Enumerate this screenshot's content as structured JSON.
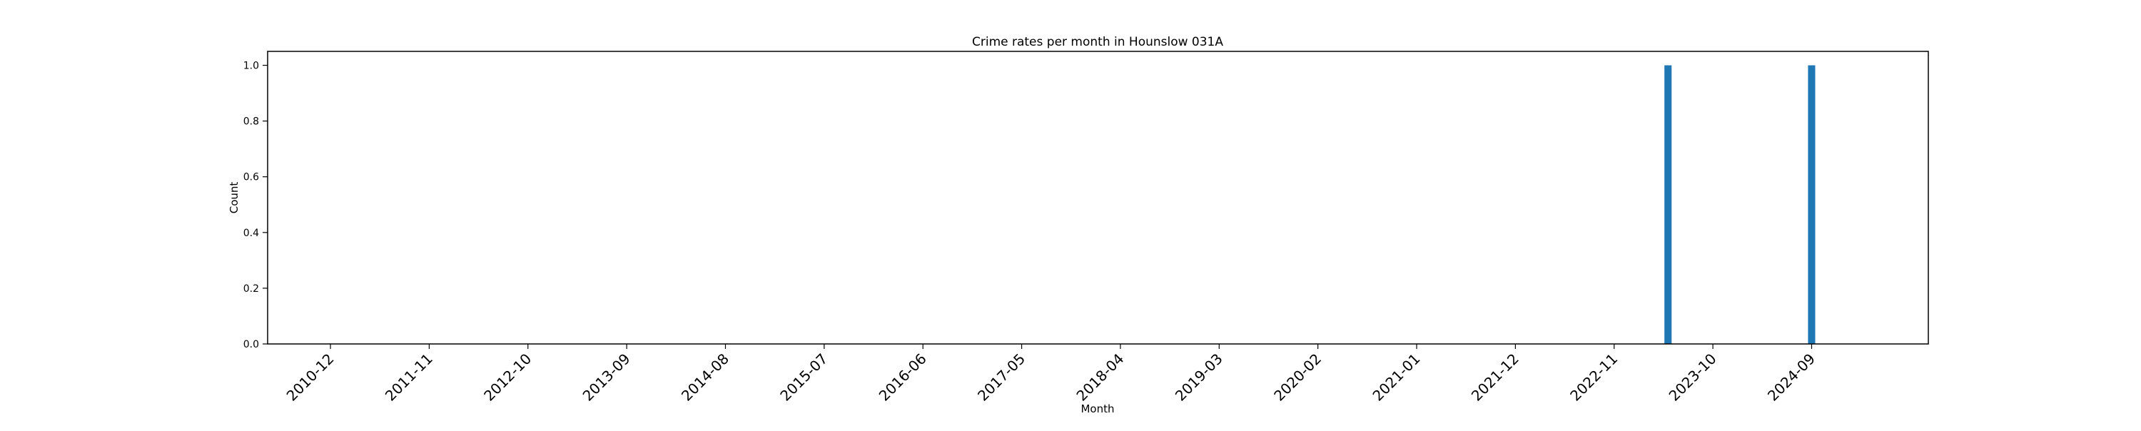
{
  "chart_data": {
    "type": "bar",
    "title": "Crime rates per month in Hounslow 031A",
    "xlabel": "Month",
    "ylabel": "Count",
    "x_tick_labels": [
      "2010-12",
      "2011-11",
      "2012-10",
      "2013-09",
      "2014-08",
      "2015-07",
      "2016-06",
      "2017-05",
      "2018-04",
      "2019-03",
      "2020-02",
      "2021-01",
      "2021-12",
      "2022-11",
      "2023-10",
      "2024-09"
    ],
    "y_ticks": [
      0.0,
      0.2,
      0.4,
      0.6,
      0.8,
      1.0
    ],
    "y_tick_labels": [
      "0.0",
      "0.2",
      "0.4",
      "0.6",
      "0.8",
      "1.0"
    ],
    "ylim": [
      0,
      1.05
    ],
    "xlim": [
      "2010-05",
      "2025-10"
    ],
    "bars": [
      {
        "month": "2023-05",
        "value": 1
      },
      {
        "month": "2024-09",
        "value": 1
      }
    ],
    "bar_color": "#1f77b4",
    "grid": false,
    "legend": "none"
  }
}
